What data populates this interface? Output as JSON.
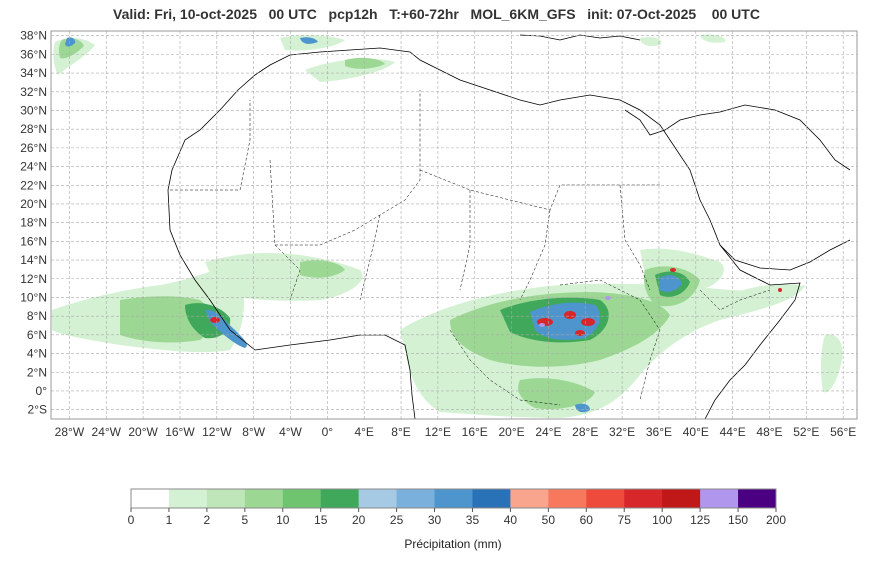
{
  "title": "Valid: Fri, 10-oct-2025   00 UTC   pcp12h   T:+60-72hr   MOL_6KM_GFS   init: 07-Oct-2025    00 UTC",
  "map": {
    "lon_range": [
      -30,
      57.5
    ],
    "lat_range": [
      -3,
      38.5
    ],
    "lon_ticks": [
      "28°W",
      "24°W",
      "20°W",
      "16°W",
      "12°W",
      "8°W",
      "4°W",
      "0°",
      "4°E",
      "8°E",
      "12°E",
      "16°E",
      "20°E",
      "24°E",
      "28°E",
      "32°E",
      "36°E",
      "40°E",
      "44°E",
      "48°E",
      "52°E",
      "56°E"
    ],
    "lon_values": [
      -28,
      -24,
      -20,
      -16,
      -12,
      -8,
      -4,
      0,
      4,
      8,
      12,
      16,
      20,
      24,
      28,
      32,
      36,
      40,
      44,
      48,
      52,
      56
    ],
    "lat_ticks": [
      "38°N",
      "36°N",
      "34°N",
      "32°N",
      "30°N",
      "28°N",
      "26°N",
      "24°N",
      "22°N",
      "20°N",
      "18°N",
      "16°N",
      "14°N",
      "12°N",
      "10°N",
      "8°N",
      "6°N",
      "4°N",
      "2°N",
      "0°",
      "2°S"
    ],
    "lat_values": [
      38,
      36,
      34,
      32,
      30,
      28,
      26,
      24,
      22,
      20,
      18,
      16,
      14,
      12,
      10,
      8,
      6,
      4,
      2,
      0,
      -2
    ],
    "grid": true
  },
  "colorbar": {
    "label": "Précipitation (mm)",
    "ticks": [
      "0",
      "1",
      "2",
      "5",
      "10",
      "15",
      "20",
      "25",
      "30",
      "35",
      "40",
      "50",
      "60",
      "75",
      "100",
      "125",
      "150",
      "200"
    ],
    "colors": [
      "#ffffff",
      "#d4f2d3",
      "#bfe6b8",
      "#9cd893",
      "#6fc46f",
      "#3fa85a",
      "#a6cae3",
      "#7ab1dc",
      "#4d95cc",
      "#2a72b8",
      "#f9a58d",
      "#f7785d",
      "#ef4b3c",
      "#d8272a",
      "#c01818",
      "#b196ee",
      "#4b0082"
    ]
  }
}
